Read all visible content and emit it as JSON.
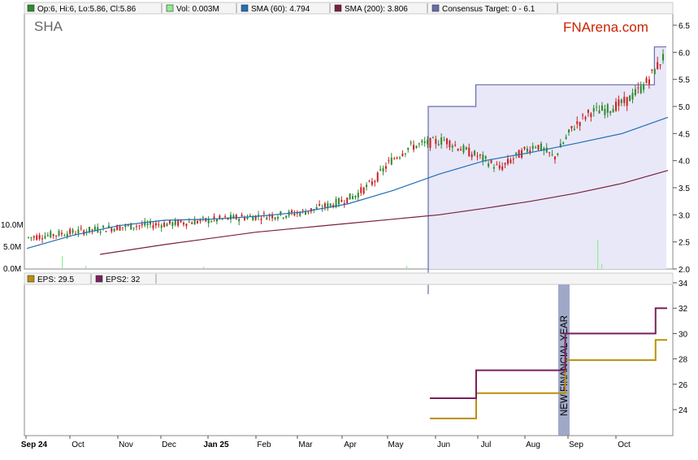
{
  "ticker": "SHA",
  "watermark": "FNArena.com",
  "main_legend": [
    {
      "label": "Op:6, Hi:6, Lo:5.86, Cl:5.86",
      "color": "#2e8b2e"
    },
    {
      "label": "Vol: 0.003M",
      "color": "#90ee90"
    },
    {
      "label": "SMA (60): 4.794",
      "color": "#1f6fb5"
    },
    {
      "label": "SMA (200): 3.806",
      "color": "#7a1f3d"
    },
    {
      "label": "Consensus Target: 0 - 6.1",
      "color": "#6a6aaa"
    }
  ],
  "eps_legend": [
    {
      "label": "EPS: 29.5",
      "color": "#b8900a"
    },
    {
      "label": "EPS2: 32",
      "color": "#7a1f5d"
    }
  ],
  "annotation": "NEW FINANCIAL YEAR",
  "x_labels": [
    "Sep 24",
    "Oct",
    "Nov",
    "Dec",
    "Jan 25",
    "Feb",
    "Mar",
    "Apr",
    "May",
    "Jun",
    "Jul",
    "Aug",
    "Sep",
    "Oct"
  ],
  "colors": {
    "up": "#2e8b2e",
    "down": "#cc2222",
    "sma60": "#1f6fb5",
    "sma200": "#7a1f3d",
    "target_fill": "#e8e8f8",
    "target_line": "#6a6aaa",
    "eps": "#b8900a",
    "eps2": "#7a1f5d",
    "volume": "#90ee90",
    "band": "#a0a8c8"
  },
  "chart_data": [
    {
      "type": "candlestick",
      "title": "SHA",
      "y_ticks": [
        "2.0",
        "2.5",
        "3.0",
        "3.5",
        "4.0",
        "4.5",
        "5.0",
        "5.5",
        "6.0",
        "6.5"
      ],
      "ylim": [
        2.0,
        6.5
      ],
      "close_path": [
        [
          0,
          2.58
        ],
        [
          1,
          2.62
        ],
        [
          2,
          2.66
        ],
        [
          3,
          2.7
        ],
        [
          4,
          2.74
        ],
        [
          5,
          2.77
        ],
        [
          6,
          2.8
        ],
        [
          7,
          2.82
        ],
        [
          8,
          2.84
        ],
        [
          9,
          2.87
        ],
        [
          10,
          2.9
        ],
        [
          11,
          2.93
        ],
        [
          12,
          2.96
        ],
        [
          13,
          2.98
        ],
        [
          14,
          3.0
        ],
        [
          15,
          3.04
        ],
        [
          16,
          3.12
        ],
        [
          17,
          3.22
        ],
        [
          18,
          3.35
        ],
        [
          19,
          3.6
        ],
        [
          20,
          4.0
        ],
        [
          21,
          4.25
        ],
        [
          22,
          4.32
        ],
        [
          23,
          4.38
        ],
        [
          24,
          4.2
        ],
        [
          25,
          4.05
        ],
        [
          26,
          3.85
        ],
        [
          27,
          4.1
        ],
        [
          28,
          4.3
        ],
        [
          29,
          4.05
        ],
        [
          30,
          4.6
        ],
        [
          31,
          4.9
        ],
        [
          32,
          4.95
        ],
        [
          33,
          5.1
        ],
        [
          34,
          5.4
        ],
        [
          35,
          5.9
        ]
      ],
      "sma60": [
        [
          0,
          2.38
        ],
        [
          5,
          2.62
        ],
        [
          10,
          2.8
        ],
        [
          15,
          2.9
        ],
        [
          20,
          2.92
        ],
        [
          25,
          2.97
        ],
        [
          30,
          3.05
        ],
        [
          35,
          3.2
        ],
        [
          40,
          3.45
        ],
        [
          45,
          3.75
        ],
        [
          50,
          4.0
        ],
        [
          55,
          4.15
        ],
        [
          60,
          4.32
        ],
        [
          65,
          4.5
        ],
        [
          70,
          4.8
        ]
      ],
      "sma200": [
        [
          8,
          2.27
        ],
        [
          15,
          2.45
        ],
        [
          25,
          2.68
        ],
        [
          35,
          2.84
        ],
        [
          40,
          2.92
        ],
        [
          45,
          3.0
        ],
        [
          50,
          3.12
        ],
        [
          55,
          3.25
        ],
        [
          60,
          3.4
        ],
        [
          65,
          3.58
        ],
        [
          70,
          3.82
        ]
      ],
      "consensus_target": [
        [
          0,
          0
        ],
        [
          0,
          5.0
        ],
        [
          4,
          5.0
        ],
        [
          4,
          5.4
        ],
        [
          19,
          5.4
        ],
        [
          19,
          6.1
        ],
        [
          20,
          6.1
        ]
      ]
    },
    {
      "type": "line",
      "title": "EPS",
      "y_ticks": [
        "24",
        "26",
        "28",
        "30",
        "32",
        "34"
      ],
      "ylim": [
        22.5,
        34
      ],
      "series": [
        {
          "name": "EPS",
          "points": [
            [
              0,
              23.3
            ],
            [
              4,
              23.3
            ],
            [
              4,
              25.3
            ],
            [
              11.7,
              25.3
            ],
            [
              11.7,
              27.9
            ],
            [
              19.5,
              27.9
            ],
            [
              19.5,
              29.5
            ],
            [
              20.5,
              29.5
            ]
          ]
        },
        {
          "name": "EPS2",
          "points": [
            [
              0,
              24.9
            ],
            [
              4,
              24.9
            ],
            [
              4,
              27.1
            ],
            [
              11.7,
              27.1
            ],
            [
              11.7,
              30.0
            ],
            [
              19.5,
              30.0
            ],
            [
              19.5,
              32.0
            ],
            [
              20.5,
              32.0
            ]
          ]
        }
      ]
    }
  ]
}
